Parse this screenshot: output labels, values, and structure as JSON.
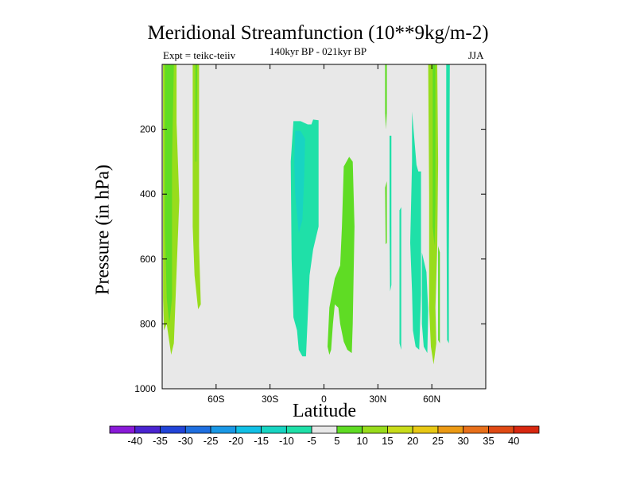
{
  "chart_data": {
    "type": "heatmap",
    "title": "Meridional Streamfunction (10**9kg/m-2)",
    "left_label": "Expt = teikc-teiiv",
    "subtitle": "140kyr BP - 021kyr BP",
    "right_label": "JJA",
    "xlabel": "Latitude",
    "ylabel": "Pressure (in hPa)",
    "xlim": [
      -90,
      90
    ],
    "ylim": [
      1000,
      0
    ],
    "x_ticks": [
      {
        "value": -60,
        "label": "60S"
      },
      {
        "value": -30,
        "label": "30S"
      },
      {
        "value": 0,
        "label": "0"
      },
      {
        "value": 30,
        "label": "30N"
      },
      {
        "value": 60,
        "label": "60N"
      }
    ],
    "y_ticks": [
      {
        "value": 200,
        "label": "200"
      },
      {
        "value": 400,
        "label": "400"
      },
      {
        "value": 600,
        "label": "600"
      },
      {
        "value": 800,
        "label": "800"
      },
      {
        "value": 1000,
        "label": "1000"
      }
    ],
    "background_color": "#e8e8e8",
    "colorbar": {
      "levels": [
        "-40",
        "-35",
        "-30",
        "-25",
        "-20",
        "-15",
        "-10",
        "-5",
        "5",
        "10",
        "15",
        "20",
        "25",
        "30",
        "35",
        "40"
      ],
      "colors": [
        "#8a1ad8",
        "#4a24d0",
        "#2244d8",
        "#1f6fe0",
        "#1a98e6",
        "#12c0e6",
        "#18d4c2",
        "#1fe0a8",
        "#e8e8e8",
        "#5fdc24",
        "#98dc1c",
        "#c8dc1a",
        "#e8c814",
        "#ec9a14",
        "#e8701a",
        "#e04a14",
        "#d82810"
      ]
    },
    "regions": [
      {
        "value": 12,
        "color": "#98dc1c",
        "points": [
          [
            -89.5,
            0
          ],
          [
            -82,
            0
          ],
          [
            -82,
            180
          ],
          [
            -80.5,
            420
          ],
          [
            -83.5,
            860
          ],
          [
            -85,
            895
          ],
          [
            -87.5,
            800
          ],
          [
            -89,
            820
          ],
          [
            -89.5,
            720
          ]
        ]
      },
      {
        "value": 7,
        "color": "#5fdc24",
        "points": [
          [
            -88.5,
            0
          ],
          [
            -83.5,
            0
          ],
          [
            -84.5,
            300
          ],
          [
            -84.5,
            720
          ],
          [
            -86,
            800
          ],
          [
            -87.5,
            720
          ],
          [
            -88.5,
            500
          ]
        ]
      },
      {
        "value": 12,
        "color": "#98dc1c",
        "points": [
          [
            -73,
            0
          ],
          [
            -69.5,
            0
          ],
          [
            -69.5,
            560
          ],
          [
            -68.5,
            740
          ],
          [
            -70,
            755
          ],
          [
            -72,
            650
          ],
          [
            -73,
            500
          ]
        ]
      },
      {
        "value": 7,
        "color": "#5fdc24",
        "points": [
          [
            -71.5,
            0
          ],
          [
            -70.5,
            0
          ],
          [
            -71,
            300
          ],
          [
            -71.5,
            300
          ]
        ]
      },
      {
        "value": -7,
        "color": "#1fe0a8",
        "points": [
          [
            -17,
            175
          ],
          [
            -13,
            175
          ],
          [
            -9,
            185
          ],
          [
            -7,
            185
          ],
          [
            -6,
            170
          ],
          [
            -3,
            172
          ],
          [
            -3,
            500
          ],
          [
            -6,
            570
          ],
          [
            -8,
            650
          ],
          [
            -10,
            900
          ],
          [
            -12,
            900
          ],
          [
            -14,
            880
          ],
          [
            -15,
            820
          ],
          [
            -17,
            780
          ],
          [
            -18,
            600
          ],
          [
            -18.5,
            300
          ]
        ]
      },
      {
        "value": -12,
        "color": "#18d4c2",
        "points": [
          [
            -16,
            205
          ],
          [
            -13,
            205
          ],
          [
            -10.5,
            230
          ],
          [
            -11,
            350
          ],
          [
            -12,
            480
          ],
          [
            -14,
            520
          ],
          [
            -16,
            400
          ],
          [
            -16.5,
            300
          ]
        ]
      },
      {
        "value": 7,
        "color": "#5fdc24",
        "points": [
          [
            11,
            315
          ],
          [
            13,
            295
          ],
          [
            14,
            285
          ],
          [
            16,
            300
          ],
          [
            17,
            500
          ],
          [
            16,
            800
          ],
          [
            15.5,
            890
          ],
          [
            13,
            880
          ],
          [
            11,
            855
          ],
          [
            9,
            800
          ],
          [
            8,
            750
          ],
          [
            6,
            740
          ],
          [
            5,
            800
          ],
          [
            4,
            880
          ],
          [
            3,
            895
          ],
          [
            2,
            870
          ],
          [
            3,
            750
          ],
          [
            6,
            660
          ],
          [
            9,
            620
          ],
          [
            10,
            500
          ]
        ]
      },
      {
        "value": 7,
        "color": "#5fdc24",
        "points": [
          [
            34,
            0
          ],
          [
            35,
            0
          ],
          [
            35,
            150
          ],
          [
            34.5,
            200
          ],
          [
            34,
            150
          ]
        ]
      },
      {
        "value": 7,
        "color": "#5fdc24",
        "points": [
          [
            34,
            380
          ],
          [
            35,
            360
          ],
          [
            35,
            550
          ],
          [
            34.3,
            555
          ]
        ]
      },
      {
        "value": -7,
        "color": "#1fe0a8",
        "points": [
          [
            36.5,
            220
          ],
          [
            37.5,
            220
          ],
          [
            37.5,
            680
          ],
          [
            36.8,
            700
          ],
          [
            36.5,
            500
          ]
        ]
      },
      {
        "value": -7,
        "color": "#1fe0a8",
        "points": [
          [
            42,
            450
          ],
          [
            43,
            440
          ],
          [
            43,
            880
          ],
          [
            42,
            860
          ]
        ]
      },
      {
        "value": -7,
        "color": "#1fe0a8",
        "points": [
          [
            49,
            145
          ],
          [
            51.5,
            310
          ],
          [
            52.5,
            330
          ],
          [
            54,
            330
          ],
          [
            54,
            710
          ],
          [
            53,
            880
          ],
          [
            51,
            870
          ],
          [
            49.5,
            820
          ],
          [
            49,
            700
          ],
          [
            48,
            550
          ],
          [
            49,
            300
          ]
        ]
      },
      {
        "value": -7,
        "color": "#1fe0a8",
        "points": [
          [
            54.5,
            580
          ],
          [
            57,
            640
          ],
          [
            58,
            760
          ],
          [
            57.5,
            890
          ],
          [
            55.5,
            870
          ],
          [
            54.5,
            800
          ]
        ]
      },
      {
        "value": 12,
        "color": "#98dc1c",
        "points": [
          [
            58,
            0
          ],
          [
            63,
            0
          ],
          [
            63.5,
            300
          ],
          [
            63,
            560
          ],
          [
            62,
            750
          ],
          [
            62.5,
            860
          ],
          [
            61,
            925
          ],
          [
            59.5,
            870
          ],
          [
            58.5,
            750
          ],
          [
            58.5,
            400
          ]
        ]
      },
      {
        "value": 7,
        "color": "#5fdc24",
        "points": [
          [
            60.5,
            0
          ],
          [
            62,
            0
          ],
          [
            62,
            430
          ],
          [
            61.5,
            560
          ],
          [
            60.5,
            500
          ]
        ]
      },
      {
        "value": 7,
        "color": "#5fdc24",
        "points": [
          [
            63.5,
            560
          ],
          [
            64.5,
            580
          ],
          [
            64.5,
            860
          ],
          [
            63.5,
            850
          ]
        ]
      },
      {
        "value": -7,
        "color": "#1fe0a8",
        "points": [
          [
            68,
            0
          ],
          [
            70,
            0
          ],
          [
            69.8,
            300
          ],
          [
            69.5,
            600
          ],
          [
            69.5,
            860
          ],
          [
            68.5,
            850
          ],
          [
            68.3,
            600
          ],
          [
            68,
            300
          ]
        ]
      }
    ]
  }
}
